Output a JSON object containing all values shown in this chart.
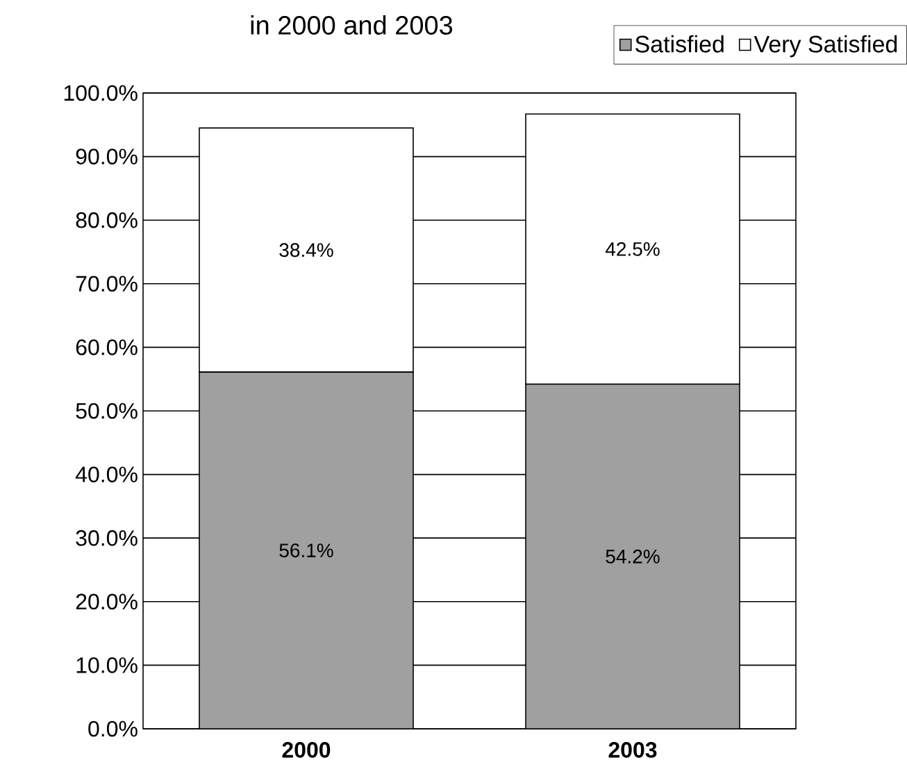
{
  "chart_data": {
    "type": "bar",
    "stacked": true,
    "title": "in 2000 and 2003",
    "categories": [
      "2000",
      "2003"
    ],
    "series": [
      {
        "name": "Satisfied",
        "color": "#a0a0a0",
        "values": [
          56.1,
          54.2
        ],
        "value_labels": [
          "56.1%",
          "54.2%"
        ]
      },
      {
        "name": "Very Satisfied",
        "color": "#ffffff",
        "values": [
          38.4,
          42.5
        ],
        "value_labels": [
          "38.4%",
          "42.5%"
        ]
      }
    ],
    "ylim": [
      0,
      100
    ],
    "yticks": [
      {
        "value": 0,
        "label": "0.0%"
      },
      {
        "value": 10,
        "label": "10.0%"
      },
      {
        "value": 20,
        "label": "20.0%"
      },
      {
        "value": 30,
        "label": "30.0%"
      },
      {
        "value": 40,
        "label": "40.0%"
      },
      {
        "value": 50,
        "label": "50.0%"
      },
      {
        "value": 60,
        "label": "60.0%"
      },
      {
        "value": 70,
        "label": "70.0%"
      },
      {
        "value": 80,
        "label": "80.0%"
      },
      {
        "value": 90,
        "label": "90.0%"
      },
      {
        "value": 100,
        "label": "100.0%"
      }
    ],
    "grid": "y",
    "legend": "top right"
  }
}
